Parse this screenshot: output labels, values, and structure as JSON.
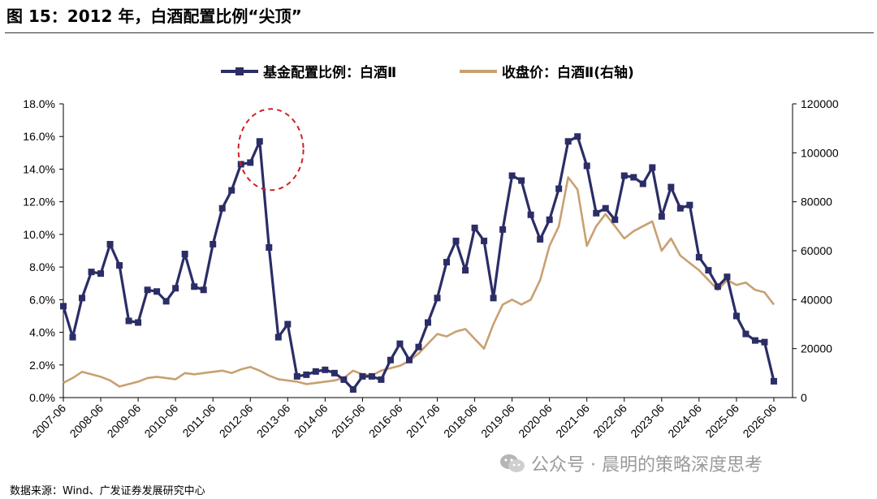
{
  "figure": {
    "title": "图 15：2012 年，白酒配置比例“尖顶”",
    "source": "数据来源：Wind、广发证券发展研究中心",
    "watermark": "公众号 · 晨明的策略深度思考",
    "watermark_icon": "wechat-icon"
  },
  "colors": {
    "series_allocation": "#2b2d66",
    "series_close": "#c9a071",
    "highlight_circle": "#cc2222"
  },
  "chart_data": {
    "type": "line",
    "title": "",
    "xlabel": "",
    "ylabel": "",
    "x_ticks": [
      "2007-06",
      "2008-06",
      "2009-06",
      "2010-06",
      "2011-06",
      "2012-06",
      "2013-06",
      "2014-06",
      "2015-06",
      "2016-06",
      "2017-06",
      "2018-06",
      "2019-06",
      "2020-06",
      "2021-06",
      "2022-06",
      "2023-06",
      "2024-06",
      "2025-06",
      "2026-06"
    ],
    "x_range": [
      2007.5,
      2027.0
    ],
    "y_left": {
      "range": [
        0,
        18
      ],
      "step": 2,
      "tick_labels": [
        "0.0%",
        "2.0%",
        "4.0%",
        "6.0%",
        "8.0%",
        "10.0%",
        "12.0%",
        "14.0%",
        "16.0%",
        "18.0%"
      ]
    },
    "y_right": {
      "range": [
        0,
        120000
      ],
      "step": 20000,
      "tick_labels": [
        "0",
        "20000",
        "40000",
        "60000",
        "80000",
        "100000",
        "120000"
      ],
      "label": ""
    },
    "legend": {
      "placement": "top-center",
      "entries": [
        "基金配置比例：白酒Ⅱ",
        "收盘价：白酒Ⅱ(右轴)"
      ]
    },
    "annotation": {
      "type": "dashed-circle",
      "around": "2012 peak of allocation ratio"
    },
    "series": [
      {
        "name": "基金配置比例：白酒Ⅱ",
        "axis": "left",
        "unit": "%",
        "marker": "square",
        "points": [
          [
            2007.5,
            5.6
          ],
          [
            2007.75,
            3.7
          ],
          [
            2008.0,
            6.1
          ],
          [
            2008.25,
            7.7
          ],
          [
            2008.5,
            7.6
          ],
          [
            2008.75,
            9.4
          ],
          [
            2009.0,
            8.1
          ],
          [
            2009.25,
            4.7
          ],
          [
            2009.5,
            4.6
          ],
          [
            2009.75,
            6.6
          ],
          [
            2010.0,
            6.5
          ],
          [
            2010.25,
            5.9
          ],
          [
            2010.5,
            6.7
          ],
          [
            2010.75,
            8.8
          ],
          [
            2011.0,
            6.8
          ],
          [
            2011.25,
            6.6
          ],
          [
            2011.5,
            9.4
          ],
          [
            2011.75,
            11.6
          ],
          [
            2012.0,
            12.7
          ],
          [
            2012.25,
            14.3
          ],
          [
            2012.5,
            14.4
          ],
          [
            2012.75,
            15.7
          ],
          [
            2013.0,
            9.2
          ],
          [
            2013.25,
            3.7
          ],
          [
            2013.5,
            4.5
          ],
          [
            2013.75,
            1.3
          ],
          [
            2014.0,
            1.4
          ],
          [
            2014.25,
            1.6
          ],
          [
            2014.5,
            1.7
          ],
          [
            2014.75,
            1.5
          ],
          [
            2015.0,
            1.1
          ],
          [
            2015.25,
            0.5
          ],
          [
            2015.5,
            1.3
          ],
          [
            2015.75,
            1.3
          ],
          [
            2016.0,
            1.1
          ],
          [
            2016.25,
            2.3
          ],
          [
            2016.5,
            3.3
          ],
          [
            2016.75,
            2.3
          ],
          [
            2017.0,
            3.1
          ],
          [
            2017.25,
            4.6
          ],
          [
            2017.5,
            6.1
          ],
          [
            2017.75,
            8.3
          ],
          [
            2018.0,
            9.6
          ],
          [
            2018.25,
            7.8
          ],
          [
            2018.5,
            10.4
          ],
          [
            2018.75,
            9.6
          ],
          [
            2019.0,
            6.1
          ],
          [
            2019.25,
            10.3
          ],
          [
            2019.5,
            13.6
          ],
          [
            2019.75,
            13.3
          ],
          [
            2020.0,
            11.2
          ],
          [
            2020.25,
            9.7
          ],
          [
            2020.5,
            10.9
          ],
          [
            2020.75,
            12.8
          ],
          [
            2021.0,
            15.7
          ],
          [
            2021.25,
            16.0
          ],
          [
            2021.5,
            14.2
          ],
          [
            2021.75,
            11.3
          ],
          [
            2022.0,
            11.6
          ],
          [
            2022.25,
            10.9
          ],
          [
            2022.5,
            13.6
          ],
          [
            2022.75,
            13.5
          ],
          [
            2023.0,
            13.1
          ],
          [
            2023.25,
            14.1
          ],
          [
            2023.5,
            11.1
          ],
          [
            2023.75,
            12.9
          ],
          [
            2024.0,
            11.6
          ],
          [
            2024.25,
            11.8
          ],
          [
            2024.5,
            8.6
          ],
          [
            2024.75,
            7.8
          ],
          [
            2025.0,
            6.8
          ],
          [
            2025.25,
            7.4
          ],
          [
            2025.5,
            5.0
          ],
          [
            2025.75,
            3.9
          ],
          [
            2026.0,
            3.5
          ],
          [
            2026.25,
            3.4
          ],
          [
            2026.5,
            1.0
          ]
        ]
      },
      {
        "name": "收盘价：白酒Ⅱ(右轴)",
        "axis": "right",
        "points": [
          [
            2007.5,
            6000
          ],
          [
            2007.75,
            8000
          ],
          [
            2008.0,
            10500
          ],
          [
            2008.25,
            9500
          ],
          [
            2008.5,
            8500
          ],
          [
            2008.75,
            7000
          ],
          [
            2009.0,
            4500
          ],
          [
            2009.25,
            5500
          ],
          [
            2009.5,
            6500
          ],
          [
            2009.75,
            8000
          ],
          [
            2010.0,
            8500
          ],
          [
            2010.25,
            8000
          ],
          [
            2010.5,
            7500
          ],
          [
            2010.75,
            10000
          ],
          [
            2011.0,
            9500
          ],
          [
            2011.25,
            10000
          ],
          [
            2011.5,
            10500
          ],
          [
            2011.75,
            11000
          ],
          [
            2012.0,
            10000
          ],
          [
            2012.25,
            11500
          ],
          [
            2012.5,
            12500
          ],
          [
            2012.75,
            11000
          ],
          [
            2013.0,
            9000
          ],
          [
            2013.25,
            7500
          ],
          [
            2013.5,
            7000
          ],
          [
            2013.75,
            6500
          ],
          [
            2014.0,
            5500
          ],
          [
            2014.25,
            6000
          ],
          [
            2014.5,
            6500
          ],
          [
            2014.75,
            7000
          ],
          [
            2015.0,
            8000
          ],
          [
            2015.25,
            11000
          ],
          [
            2015.5,
            9500
          ],
          [
            2015.75,
            9000
          ],
          [
            2016.0,
            11000
          ],
          [
            2016.25,
            12000
          ],
          [
            2016.5,
            13000
          ],
          [
            2016.75,
            15000
          ],
          [
            2017.0,
            18000
          ],
          [
            2017.25,
            22000
          ],
          [
            2017.5,
            26000
          ],
          [
            2017.75,
            25000
          ],
          [
            2018.0,
            27000
          ],
          [
            2018.25,
            28000
          ],
          [
            2018.5,
            24000
          ],
          [
            2018.75,
            20000
          ],
          [
            2019.0,
            30000
          ],
          [
            2019.25,
            38000
          ],
          [
            2019.5,
            40000
          ],
          [
            2019.75,
            38000
          ],
          [
            2020.0,
            40000
          ],
          [
            2020.25,
            48000
          ],
          [
            2020.5,
            62000
          ],
          [
            2020.75,
            70000
          ],
          [
            2021.0,
            90000
          ],
          [
            2021.25,
            85000
          ],
          [
            2021.5,
            62000
          ],
          [
            2021.75,
            70000
          ],
          [
            2022.0,
            75000
          ],
          [
            2022.25,
            70000
          ],
          [
            2022.5,
            65000
          ],
          [
            2022.75,
            68000
          ],
          [
            2023.0,
            70000
          ],
          [
            2023.25,
            72000
          ],
          [
            2023.5,
            60000
          ],
          [
            2023.75,
            65000
          ],
          [
            2024.0,
            58000
          ],
          [
            2024.25,
            55000
          ],
          [
            2024.5,
            52000
          ],
          [
            2024.75,
            48000
          ],
          [
            2025.0,
            44000
          ],
          [
            2025.25,
            48000
          ],
          [
            2025.5,
            46000
          ],
          [
            2025.75,
            47000
          ],
          [
            2026.0,
            44000
          ],
          [
            2026.25,
            43000
          ],
          [
            2026.5,
            38000
          ]
        ]
      }
    ]
  }
}
